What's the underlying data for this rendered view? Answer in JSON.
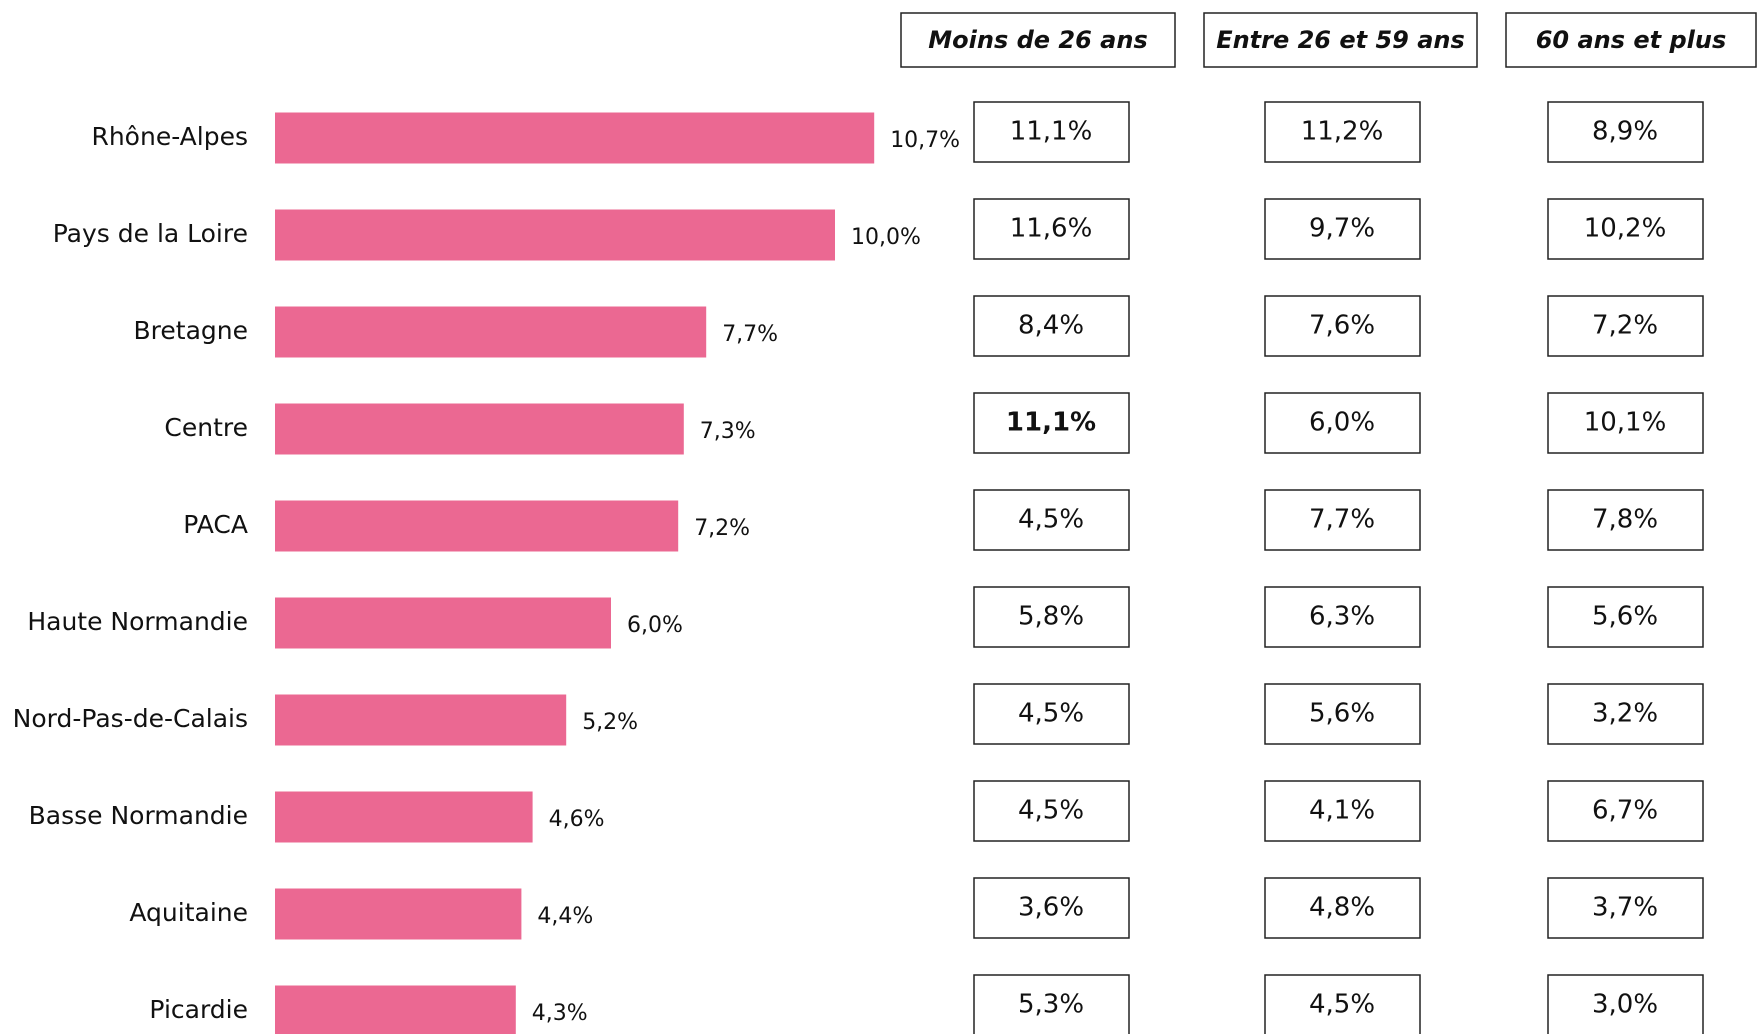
{
  "chart_data": {
    "type": "barh",
    "categories": [
      "Rhône-Alpes",
      "Pays de la Loire",
      "Bretagne",
      "Centre",
      "PACA",
      "Haute Normandie",
      "Nord-Pas-de-Calais",
      "Basse Normandie",
      "Aquitaine",
      "Picardie"
    ],
    "values": [
      10.7,
      10.0,
      7.7,
      7.3,
      7.2,
      6.0,
      5.2,
      4.6,
      4.4,
      4.3
    ],
    "value_labels": [
      "10,7%",
      "10,0%",
      "7,7%",
      "7,3%",
      "7,2%",
      "6,0%",
      "5,2%",
      "4,6%",
      "4,4%",
      "4,3%"
    ],
    "color": "#eb6892"
  },
  "table": {
    "columns": [
      "Moins de 26 ans",
      "Entre 26 et 59 ans",
      "60 ans et plus"
    ],
    "header_color": "#e3141c",
    "rows": [
      [
        "11,1%",
        "11,2%",
        "8,9%"
      ],
      [
        "11,6%",
        "9,7%",
        "10,2%"
      ],
      [
        "8,4%",
        "7,6%",
        "7,2%"
      ],
      [
        "11,1%",
        "6,0%",
        "10,1%"
      ],
      [
        "4,5%",
        "7,7%",
        "7,8%"
      ],
      [
        "5,8%",
        "6,3%",
        "5,6%"
      ],
      [
        "4,5%",
        "5,6%",
        "3,2%"
      ],
      [
        "4,5%",
        "4,1%",
        "6,7%"
      ],
      [
        "3,6%",
        "4,8%",
        "3,7%"
      ],
      [
        "5,3%",
        "4,5%",
        "3,0%"
      ]
    ],
    "highlight": {
      "row": 3,
      "col": 0,
      "color": "#e30000"
    }
  }
}
